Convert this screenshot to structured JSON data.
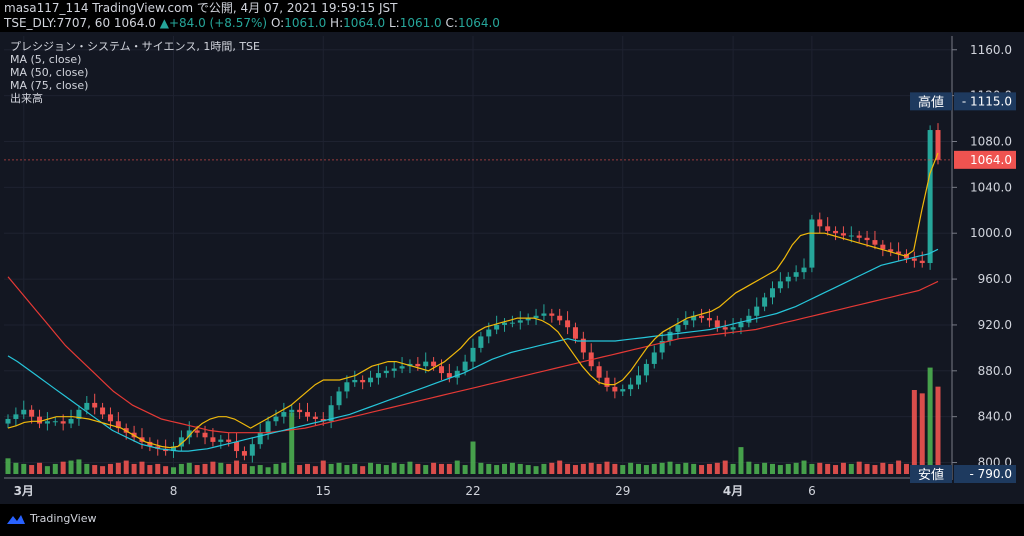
{
  "header": {
    "line1": "masa117_114 TradingView.com で公開, 4月 07, 2021 19:59:15 JST",
    "ticker": "TSE_DLY:7707, 60",
    "close": "1064.0",
    "arrow": "▲",
    "change": "+84.0 (+8.57%)",
    "o_label": "O:",
    "o_value": "1061.0",
    "h_label": "H:",
    "h_value": "1064.0",
    "l_label": "L:",
    "l_value": "1061.0",
    "c_label": "C:",
    "c_value": "1064.0"
  },
  "legend": {
    "title": "プレシジョン・システム・サイエンス, 1時間, TSE",
    "ma5": "MA (5, close)",
    "ma50": "MA (50, close)",
    "ma75": "MA (75, close)",
    "volume": "出来高"
  },
  "footer": {
    "brand": "TradingView"
  },
  "colors": {
    "background": "#131722",
    "up": "#26a69a",
    "down": "#ef5350",
    "vol_up": "#4caf50",
    "vol_down": "#ef5350",
    "ma5": "#f0b90b",
    "ma50": "#26c6da",
    "ma75": "#e53935",
    "label_bg": "#1e3a5f"
  },
  "chart_data": {
    "type": "candlestick",
    "ylim": [
      790,
      1172
    ],
    "yticks": [
      800,
      840,
      880,
      920,
      960,
      1000,
      1040,
      1080,
      1120,
      1160
    ],
    "ytick_labels": [
      "800.0",
      "840.0",
      "880.0",
      "920.0",
      "960.0",
      "1000.0",
      "1040.0",
      "1080.0",
      "1120.0",
      "1160.0"
    ],
    "xticks": [
      {
        "label": "3月",
        "index": 2,
        "bold": true
      },
      {
        "label": "8",
        "index": 21,
        "bold": false
      },
      {
        "label": "15",
        "index": 40,
        "bold": false
      },
      {
        "label": "22",
        "index": 59,
        "bold": false
      },
      {
        "label": "29",
        "index": 78,
        "bold": false
      },
      {
        "label": "4月",
        "index": 92,
        "bold": true
      },
      {
        "label": "6",
        "index": 102,
        "bold": false
      }
    ],
    "price_labels": {
      "high": {
        "label": "高値",
        "value": "1115.0",
        "level": 1115
      },
      "current": {
        "value": "1064.0",
        "level": 1064
      },
      "low": {
        "label": "安値",
        "value": "790.0",
        "level": 790
      }
    },
    "closes": [
      838,
      842,
      846,
      840,
      834,
      836,
      836,
      834,
      838,
      846,
      852,
      848,
      842,
      836,
      830,
      826,
      822,
      818,
      814,
      812,
      810,
      814,
      822,
      828,
      826,
      822,
      818,
      820,
      818,
      810,
      806,
      816,
      826,
      836,
      840,
      844,
      846,
      844,
      840,
      838,
      836,
      850,
      862,
      870,
      872,
      870,
      874,
      878,
      880,
      882,
      884,
      886,
      884,
      888,
      884,
      878,
      874,
      880,
      888,
      900,
      910,
      916,
      920,
      922,
      922,
      924,
      926,
      928,
      930,
      928,
      924,
      918,
      908,
      896,
      884,
      874,
      866,
      862,
      864,
      868,
      876,
      886,
      896,
      906,
      914,
      920,
      924,
      928,
      926,
      924,
      918,
      916,
      918,
      922,
      928,
      936,
      944,
      952,
      958,
      962,
      966,
      970,
      1012,
      1006,
      1002,
      1000,
      998,
      998,
      996,
      994,
      990,
      986,
      984,
      982,
      978,
      976,
      974,
      1090,
      1064
    ],
    "ma5": [
      830,
      832,
      835,
      836,
      836,
      838,
      840,
      840,
      840,
      839,
      838,
      836,
      834,
      832,
      830,
      826,
      822,
      818,
      816,
      814,
      813,
      814,
      820,
      828,
      834,
      838,
      840,
      840,
      838,
      834,
      830,
      834,
      838,
      842,
      846,
      850,
      856,
      862,
      868,
      872,
      872,
      872,
      874,
      876,
      880,
      884,
      886,
      888,
      888,
      886,
      884,
      882,
      880,
      884,
      888,
      894,
      900,
      908,
      914,
      918,
      920,
      922,
      924,
      926,
      926,
      926,
      924,
      920,
      914,
      904,
      894,
      884,
      876,
      870,
      868,
      868,
      872,
      880,
      890,
      900,
      908,
      914,
      918,
      922,
      926,
      928,
      930,
      932,
      936,
      942,
      948,
      952,
      956,
      960,
      964,
      968,
      978,
      990,
      998,
      1000,
      1000,
      1000,
      998,
      996,
      994,
      992,
      990,
      988,
      986,
      984,
      982,
      980,
      985,
      1020,
      1052,
      1070
    ],
    "ma50": [
      893,
      888,
      882,
      876,
      870,
      864,
      858,
      852,
      846,
      840,
      834,
      828,
      824,
      820,
      816,
      814,
      812,
      811,
      810,
      810,
      811,
      812,
      814,
      816,
      818,
      820,
      822,
      824,
      826,
      828,
      830,
      832,
      834,
      836,
      838,
      840,
      842,
      845,
      848,
      851,
      854,
      857,
      860,
      863,
      866,
      869,
      872,
      875,
      878,
      882,
      886,
      890,
      893,
      896,
      898,
      900,
      902,
      904,
      906,
      908,
      906,
      906,
      906,
      906,
      906,
      907,
      908,
      909,
      910,
      911,
      912,
      913,
      914,
      915,
      916,
      918,
      920,
      922,
      924,
      926,
      928,
      930,
      933,
      936,
      940,
      944,
      948,
      952,
      956,
      960,
      964,
      968,
      972,
      974,
      976,
      978,
      980,
      982,
      986
    ],
    "ma75": [
      962,
      952,
      942,
      932,
      922,
      912,
      902,
      894,
      886,
      878,
      870,
      862,
      856,
      850,
      846,
      842,
      838,
      836,
      834,
      832,
      830,
      828,
      827,
      826,
      826,
      826,
      826,
      826,
      827,
      828,
      829,
      830,
      832,
      834,
      836,
      838,
      840,
      842,
      844,
      846,
      848,
      850,
      852,
      854,
      856,
      858,
      860,
      862,
      864,
      866,
      868,
      870,
      872,
      874,
      876,
      878,
      880,
      882,
      884,
      886,
      888,
      890,
      892,
      894,
      896,
      898,
      900,
      902,
      904,
      906,
      908,
      909,
      910,
      911,
      912,
      913,
      914,
      915,
      916,
      918,
      920,
      922,
      924,
      926,
      928,
      930,
      932,
      934,
      936,
      938,
      940,
      942,
      944,
      946,
      948,
      950,
      954,
      958
    ],
    "volume_pct": [
      14,
      10,
      9,
      8,
      10,
      7,
      9,
      11,
      12,
      13,
      9,
      8,
      7,
      9,
      10,
      12,
      9,
      11,
      8,
      9,
      7,
      6,
      9,
      10,
      8,
      9,
      11,
      10,
      9,
      12,
      9,
      7,
      8,
      6,
      9,
      10,
      55,
      8,
      9,
      7,
      12,
      9,
      10,
      8,
      9,
      7,
      10,
      9,
      8,
      10,
      9,
      11,
      9,
      8,
      10,
      9,
      9,
      12,
      8,
      29,
      10,
      9,
      8,
      9,
      10,
      9,
      8,
      7,
      9,
      10,
      12,
      9,
      8,
      9,
      10,
      9,
      11,
      9,
      8,
      10,
      9,
      8,
      9,
      10,
      11,
      9,
      10,
      9,
      8,
      9,
      10,
      12,
      9,
      24,
      11,
      9,
      10,
      9,
      8,
      9,
      10,
      12,
      9,
      10,
      9,
      8,
      10,
      9,
      11,
      9,
      8,
      10,
      9,
      12,
      9,
      75,
      72,
      95,
      78
    ]
  }
}
